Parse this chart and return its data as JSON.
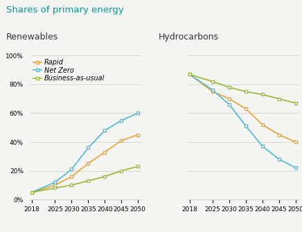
{
  "title": "Shares of primary energy",
  "title_color": "#009999",
  "left_title": "Renewables",
  "right_title": "Hydrocarbons",
  "years": [
    2018,
    2025,
    2030,
    2035,
    2040,
    2045,
    2050
  ],
  "renewables": {
    "Rapid": [
      5,
      10,
      16,
      25,
      33,
      41,
      45
    ],
    "Net Zero": [
      5,
      12,
      21,
      36,
      48,
      55,
      60
    ],
    "Business-as-usual": [
      5,
      8,
      10,
      13,
      16,
      20,
      23
    ]
  },
  "hydrocarbons": {
    "Rapid": [
      87,
      75,
      70,
      63,
      52,
      45,
      40
    ],
    "Net Zero": [
      87,
      76,
      66,
      51,
      37,
      28,
      22
    ],
    "Business-as-usual": [
      87,
      82,
      78,
      75,
      73,
      70,
      67
    ]
  },
  "colors": {
    "Rapid": "#f0a030",
    "Net Zero": "#4db8d4",
    "Business-as-usual": "#99b833"
  },
  "legend_labels": [
    "Rapid",
    "Net Zero",
    "Business-as-usual"
  ],
  "yticks": [
    0,
    20,
    40,
    60,
    80,
    100
  ],
  "xticks": [
    2018,
    2025,
    2030,
    2035,
    2040,
    2045,
    2050
  ],
  "background_color": "#f5f5f3",
  "grid_color": "#d0d0d0",
  "title_fontsize": 9.5,
  "subtitle_fontsize": 9,
  "tick_fontsize": 6.5,
  "legend_fontsize": 7
}
